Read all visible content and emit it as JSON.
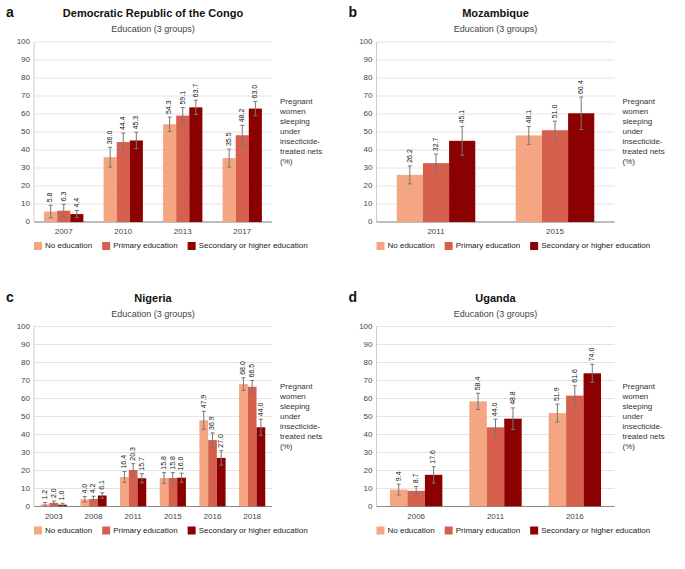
{
  "chart_data": [
    {
      "type": "bar",
      "title": "Democratic Republic of the Congo",
      "subtitle": "Education (3 groups)",
      "annotations": [
        "a"
      ],
      "ylabel": "Pregnant\nwomen\nsleeping\nunder\ninsecticide-\ntreated nets\n(%)",
      "categories": [
        "2007",
        "2010",
        "2013",
        "2017"
      ],
      "series": [
        {
          "name": "No education",
          "color": "#F4A582",
          "values": [
            5.8,
            36.0,
            54.3,
            35.5
          ],
          "value_labels": [
            "5.8",
            "36.0",
            "54.3",
            "35.5"
          ],
          "errors": [
            3.5,
            5.5,
            4.0,
            5.0
          ]
        },
        {
          "name": "Primary education",
          "color": "#D6604D",
          "values": [
            6.3,
            44.4,
            59.1,
            48.2
          ],
          "value_labels": [
            "6.3",
            "44.4",
            "59.1",
            "48.2"
          ],
          "errors": [
            3.5,
            5.0,
            4.5,
            5.5
          ]
        },
        {
          "name": "Secondary or higher education",
          "color": "#8B0000",
          "values": [
            4.4,
            45.3,
            63.7,
            63.0
          ],
          "value_labels": [
            "4.4",
            "45.3",
            "63.7",
            "63.0"
          ],
          "errors": [
            2.0,
            4.5,
            4.0,
            4.0
          ]
        }
      ],
      "ylim": [
        0,
        100
      ],
      "yticks": [
        0,
        10,
        20,
        30,
        40,
        50,
        60,
        70,
        80,
        90,
        100
      ],
      "grid": true,
      "legend": "bottom",
      "data_labels": true
    },
    {
      "type": "bar",
      "title": "Mozambique",
      "subtitle": "Education (3 groups)",
      "annotations": [
        "b"
      ],
      "ylabel": "Pregnant\nwomen\nsleeping\nunder\ninsecticide-\ntreated nets\n(%)",
      "categories": [
        "2011",
        "2015"
      ],
      "series": [
        {
          "name": "No education",
          "color": "#F4A582",
          "values": [
            26.2,
            48.1
          ],
          "value_labels": [
            "26.2",
            "48.1"
          ],
          "errors": [
            5.0,
            5.0
          ]
        },
        {
          "name": "Primary education",
          "color": "#D6604D",
          "values": [
            32.7,
            51.0
          ],
          "value_labels": [
            "32.7",
            "51.0"
          ],
          "errors": [
            5.0,
            5.0
          ]
        },
        {
          "name": "Secondary or higher education",
          "color": "#8B0000",
          "values": [
            45.1,
            60.4
          ],
          "value_labels": [
            "45.1",
            "60.4"
          ],
          "errors": [
            8.0,
            9.0
          ]
        }
      ],
      "ylim": [
        0,
        100
      ],
      "yticks": [
        0,
        10,
        20,
        30,
        40,
        50,
        60,
        70,
        80,
        90,
        100
      ],
      "grid": true,
      "legend": "bottom",
      "data_labels": true
    },
    {
      "type": "bar",
      "title": "Nigeria",
      "subtitle": "Education (3 groups)",
      "annotations": [
        "c"
      ],
      "ylabel": "Pregnant\nwomen\nsleeping\nunder\ninsecticide-\ntreated nets\n(%)",
      "categories": [
        "2003",
        "2008",
        "2011",
        "2015",
        "2016",
        "2018"
      ],
      "series": [
        {
          "name": "No education",
          "color": "#F4A582",
          "values": [
            1.2,
            4.0,
            16.4,
            15.8,
            47.9,
            68.0
          ],
          "value_labels": [
            "1.2",
            "4.0",
            "16.4",
            "15.8",
            "47.9",
            "68.0"
          ],
          "errors": [
            1.0,
            1.5,
            3.0,
            3.0,
            5.0,
            3.5
          ]
        },
        {
          "name": "Primary education",
          "color": "#D6604D",
          "values": [
            2.0,
            4.2,
            20.3,
            15.8,
            36.9,
            66.5
          ],
          "value_labels": [
            "2.0",
            "4.2",
            "20.3",
            "15.8",
            "36.9",
            "66.5"
          ],
          "errors": [
            1.0,
            1.5,
            3.5,
            3.0,
            4.0,
            3.5
          ]
        },
        {
          "name": "Secondary or higher education",
          "color": "#8B0000",
          "values": [
            1.0,
            6.1,
            15.7,
            16.0,
            27.0,
            44.0
          ],
          "value_labels": [
            "1.0",
            "6.1",
            "15.7",
            "16.0",
            "27.0",
            "44.0"
          ],
          "errors": [
            0.8,
            1.5,
            2.5,
            2.5,
            4.0,
            4.5
          ]
        }
      ],
      "ylim": [
        0,
        100
      ],
      "yticks": [
        0,
        10,
        20,
        30,
        40,
        50,
        60,
        70,
        80,
        90,
        100
      ],
      "grid": true,
      "legend": "bottom",
      "data_labels": true
    },
    {
      "type": "bar",
      "title": "Uganda",
      "subtitle": "Education (3 groups)",
      "annotations": [
        "d"
      ],
      "ylabel": "Pregnant\nwomen\nsleeping\nunder\ninsecticide-\ntreated nets\n(%)",
      "categories": [
        "2006",
        "2011",
        "2016"
      ],
      "series": [
        {
          "name": "No education",
          "color": "#F4A582",
          "values": [
            9.4,
            58.4,
            51.9
          ],
          "value_labels": [
            "9.4",
            "58.4",
            "51.9"
          ],
          "errors": [
            3.0,
            4.5,
            5.0
          ]
        },
        {
          "name": "Primary education",
          "color": "#D6604D",
          "values": [
            8.7,
            44.0,
            61.6
          ],
          "value_labels": [
            "8.7",
            "44.0",
            "61.6"
          ],
          "errors": [
            2.5,
            4.5,
            5.5
          ]
        },
        {
          "name": "Secondary or higher education",
          "color": "#8B0000",
          "values": [
            17.6,
            48.8,
            74.0
          ],
          "value_labels": [
            "17.6",
            "48.8",
            "74.0"
          ],
          "errors": [
            4.5,
            6.0,
            5.0
          ]
        }
      ],
      "ylim": [
        0,
        100
      ],
      "yticks": [
        0,
        10,
        20,
        30,
        40,
        50,
        60,
        70,
        80,
        90,
        100
      ],
      "grid": true,
      "legend": "bottom",
      "data_labels": true
    }
  ]
}
